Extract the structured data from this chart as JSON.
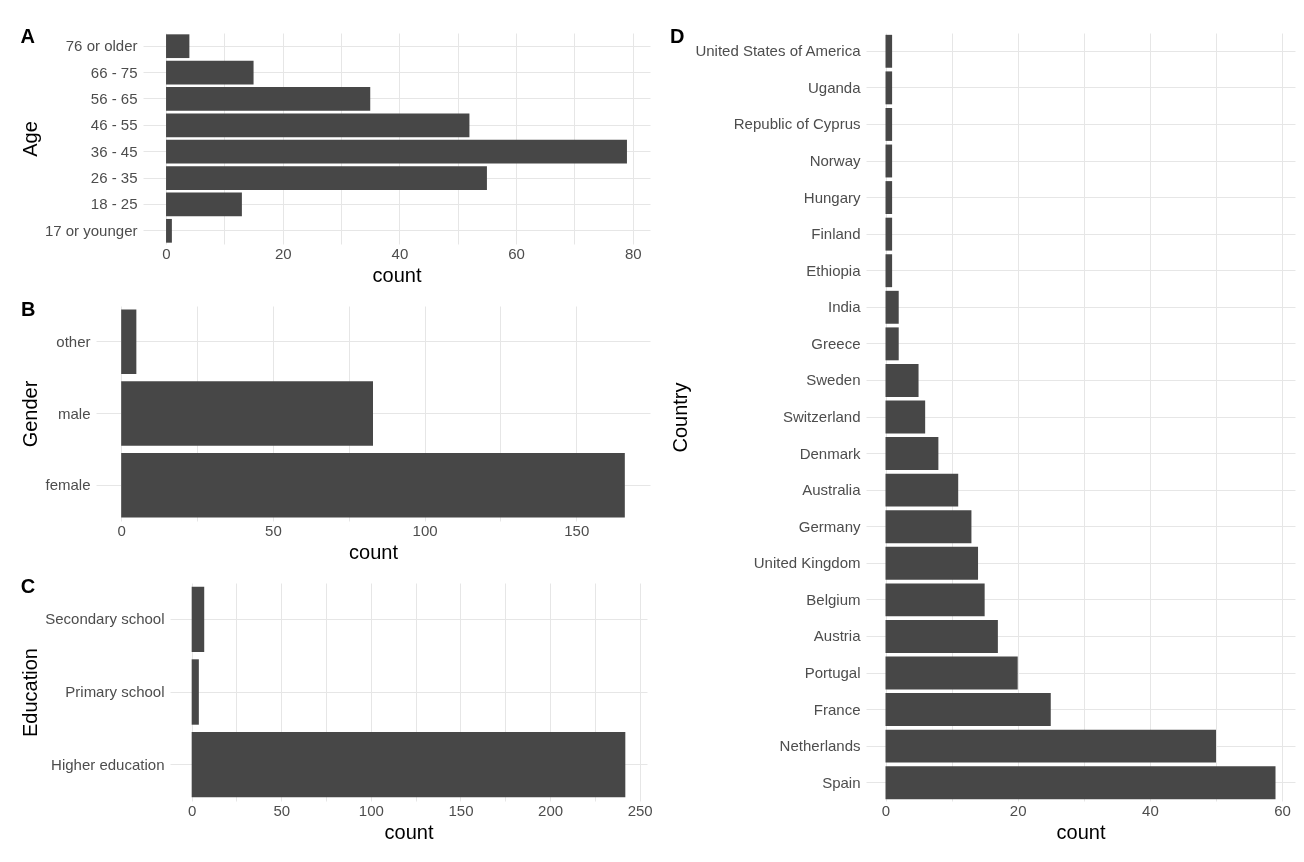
{
  "chart_data": [
    {
      "type": "bar",
      "orientation": "horizontal",
      "title": "A",
      "xlabel": "count",
      "ylabel": "Age",
      "categories": [
        "76 or older",
        "66 - 75",
        "56 - 65",
        "46 - 55",
        "36 - 45",
        "26 - 35",
        "18 - 25",
        "17 or younger"
      ],
      "values": [
        4,
        15,
        35,
        52,
        79,
        55,
        13,
        1
      ],
      "color": "#474747",
      "xlim": [
        -3.95,
        82.95
      ],
      "xticks": [
        0,
        {
          "value": 10,
          "label": null
        },
        20,
        {
          "value": 30,
          "label": null
        },
        40,
        {
          "value": 50,
          "label": null
        },
        60,
        {
          "value": 70,
          "label": null
        },
        80
      ],
      "grid": true
    },
    {
      "type": "bar",
      "orientation": "horizontal",
      "title": "B",
      "xlabel": "count",
      "ylabel": "Gender",
      "categories": [
        "other",
        "male",
        "female"
      ],
      "values": [
        5,
        83,
        166
      ],
      "color": "#474747",
      "xlim": [
        -8.3,
        174.3
      ],
      "xticks": [
        0,
        {
          "value": 25,
          "label": null
        },
        50,
        {
          "value": 75,
          "label": null
        },
        100,
        {
          "value": 125,
          "label": null
        },
        150
      ],
      "grid": true
    },
    {
      "type": "bar",
      "orientation": "horizontal",
      "title": "C",
      "xlabel": "count",
      "ylabel": "Education",
      "categories": [
        "Secondary school",
        "Primary school",
        "Higher education"
      ],
      "values": [
        7,
        4,
        242
      ],
      "color": "#474747",
      "xlim": [
        -12.1,
        254.1
      ],
      "xticks": [
        0,
        {
          "value": 25,
          "label": null
        },
        50,
        {
          "value": 75,
          "label": null
        },
        100,
        {
          "value": 125,
          "label": null
        },
        150,
        {
          "value": 175,
          "label": null
        },
        200,
        {
          "value": 225,
          "label": null
        },
        250
      ],
      "grid": true
    },
    {
      "type": "bar",
      "orientation": "horizontal",
      "title": "D",
      "xlabel": "count",
      "ylabel": "Country",
      "categories": [
        "United States of America",
        "Uganda",
        "Republic of Cyprus",
        "Norway",
        "Hungary",
        "Finland",
        "Ethiopia",
        "India",
        "Greece",
        "Sweden",
        "Switzerland",
        "Denmark",
        "Australia",
        "Germany",
        "United Kingdom",
        "Belgium",
        "Austria",
        "Portugal",
        "France",
        "Netherlands",
        "Spain"
      ],
      "values": [
        1,
        1,
        1,
        1,
        1,
        1,
        1,
        2,
        2,
        5,
        6,
        8,
        11,
        13,
        14,
        15,
        17,
        20,
        25,
        50,
        59
      ],
      "color": "#474747",
      "xlim": [
        -2.95,
        61.95
      ],
      "xticks": [
        0,
        {
          "value": 10,
          "label": null
        },
        20,
        {
          "value": 30,
          "label": null
        },
        40,
        {
          "value": 50,
          "label": null
        },
        60
      ],
      "grid": true
    }
  ]
}
